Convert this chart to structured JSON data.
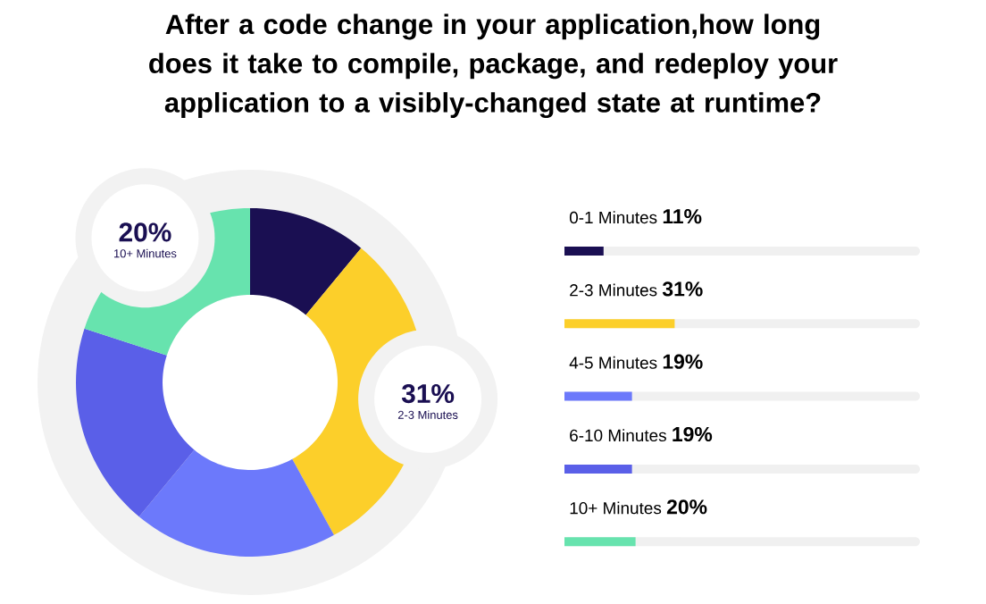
{
  "chart_data": [
    {
      "type": "donut",
      "title": "After a code change in your application,how long does it take to compile, package, and redeploy your application to a visibly-changed state at runtime?",
      "categories": [
        null,
        "2-3 Minutes",
        null,
        null,
        "10+ Minutes"
      ],
      "values": [
        11,
        31,
        19,
        19,
        20
      ],
      "colors": [
        "#1a0f52",
        "#fccf2a",
        "#6c79fb",
        "#5a5fe8",
        "#67e3ae"
      ],
      "value_labels": [
        null,
        "31%",
        null,
        null,
        "20%"
      ]
    },
    {
      "type": "bar",
      "orientation": "horizontal",
      "categories": [
        "0-1 Minutes",
        "2-3 Minutes",
        "4-5 Minutes",
        "6-10 Minutes",
        "10+ Minutes"
      ],
      "values": [
        11,
        31,
        19,
        19,
        20
      ],
      "colors": [
        "#1a0f52",
        "#fccf2a",
        "#6c79fb",
        "#5a5fe8",
        "#67e3ae"
      ],
      "value_labels": [
        "11%",
        "31%",
        "19%",
        "19%",
        "20%"
      ],
      "xlim": [
        0,
        100
      ],
      "tick_labels": false
    }
  ]
}
